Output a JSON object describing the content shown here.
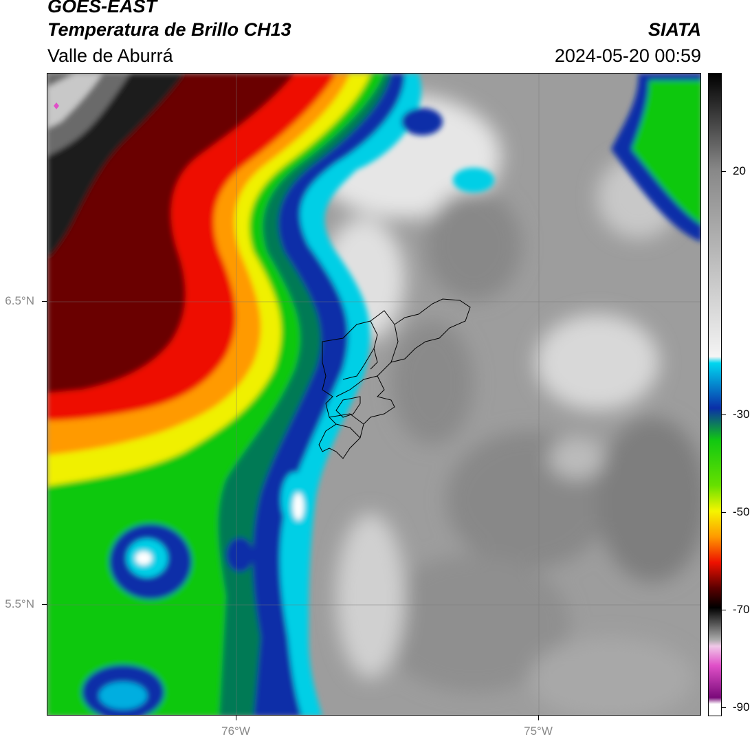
{
  "header": {
    "line1": "GOES-EAST",
    "line2": "Temperatura de Brillo CH13",
    "line3": "Valle de Aburrá",
    "org": "SIATA",
    "datetime": "2024-05-20 00:59"
  },
  "axes": {
    "lat_ticks": [
      "6.5°N",
      "5.5°N"
    ],
    "lon_ticks": [
      "76°W",
      "75°W"
    ]
  },
  "colorbar": {
    "ticks": [
      "20",
      "-30",
      "-50",
      "-70",
      "-90"
    ],
    "colors": {
      "gray_light": "#f2f2f2",
      "gray_dark": "#111111",
      "cyan": "#00d6f0",
      "blue": "#0a2fa8",
      "green": "#00c800",
      "yellow": "#f5f500",
      "orange": "#ff9900",
      "red": "#ee1100",
      "darkred": "#5a0000",
      "magenta": "#e050c8",
      "purple": "#7a0a7a"
    }
  }
}
